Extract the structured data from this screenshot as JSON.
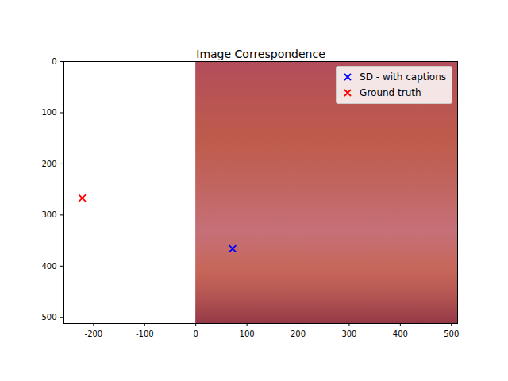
{
  "chart_data": {
    "type": "scatter",
    "title": "Image Correspondence",
    "image_extent": [
      0,
      512,
      512,
      0
    ],
    "series": [
      {
        "name": "SD - with captions",
        "color": "#0000ff",
        "marker": "x",
        "x": [
          72
        ],
        "values": [
          366
        ]
      },
      {
        "name": "Ground truth",
        "color": "#ff0000",
        "marker": "x",
        "x": [
          -222
        ],
        "values": [
          267
        ]
      }
    ],
    "xlim": [
      -258,
      512
    ],
    "xticks": [
      -200,
      -100,
      0,
      100,
      200,
      300,
      400,
      500
    ],
    "ylim": [
      512,
      0
    ],
    "yticks": [
      0,
      100,
      200,
      300,
      400,
      500
    ],
    "grid": false,
    "legend": "upper right"
  }
}
